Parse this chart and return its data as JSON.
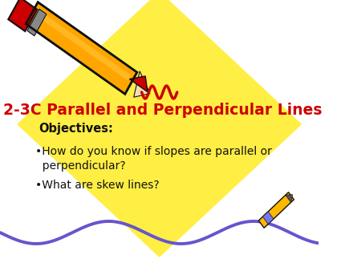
{
  "background_color": "#ffffff",
  "diamond_color": "#FFEE44",
  "title": "2-3C Parallel and Perpendicular Lines",
  "title_color": "#CC0000",
  "title_fontsize": 13.5,
  "objectives_label": "Objectives:",
  "bullet1": "•How do you know if slopes are parallel or\n  perpendicular?",
  "bullet2": "•What are skew lines?",
  "text_color": "#111111",
  "body_fontsize": 10,
  "objectives_fontsize": 10.5,
  "pencil_body_color": "#FFA500",
  "pencil_eraser_color": "#CC0000",
  "pencil_outline": "#111111",
  "pencil2_body_color": "#FFB800",
  "pencil2_band_color": "#7777EE",
  "squiggle_color": "#CC0000",
  "wave_color": "#6655CC",
  "wave_linewidth": 2.8
}
